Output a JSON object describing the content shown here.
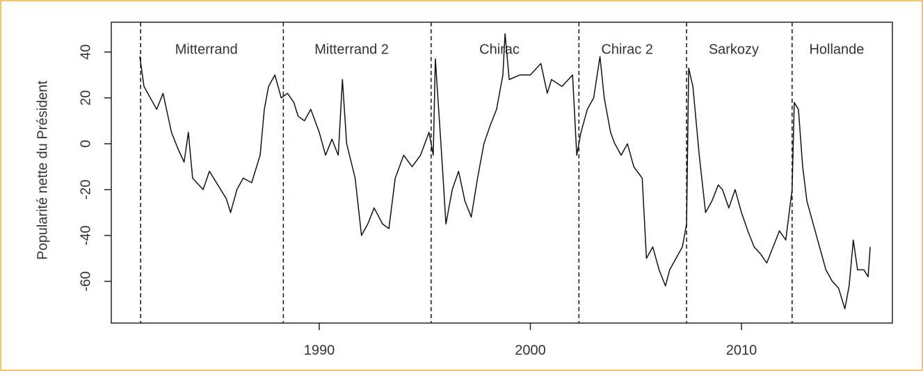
{
  "chart_data": {
    "type": "line",
    "y_label": "Popularité nette du Président",
    "xlim": [
      1980.15,
      2017.15
    ],
    "ylim": [
      -78.2,
      53
    ],
    "xticks": [
      1990,
      2000,
      2010
    ],
    "yticks": [
      -60,
      -40,
      -20,
      0,
      20,
      40
    ],
    "terms": [
      {
        "name": "Mitterrand",
        "start": 1981.54
      },
      {
        "name": "Mitterrand 2",
        "start": 1988.3
      },
      {
        "name": "Chirac",
        "start": 1995.3
      },
      {
        "name": "Chirac 2",
        "start": 2002.3
      },
      {
        "name": "Sarkozy",
        "start": 2007.4
      },
      {
        "name": "Hollande",
        "start": 2012.4
      }
    ],
    "series": [
      {
        "color": "#111111",
        "x": [
          1981.5,
          1981.7,
          1982,
          1982.3,
          1982.6,
          1983,
          1983.3,
          1983.6,
          1983.8,
          1984,
          1984.5,
          1984.8,
          1985.2,
          1985.6,
          1985.8,
          1986.1,
          1986.4,
          1986.8,
          1987.2,
          1987.4,
          1987.6,
          1987.9,
          1988.2,
          1988.5,
          1988.8,
          1989,
          1989.3,
          1989.6,
          1990,
          1990.3,
          1990.6,
          1990.9,
          1991.1,
          1991.3,
          1991.7,
          1992,
          1992.3,
          1992.6,
          1993,
          1993.3,
          1993.6,
          1994,
          1994.4,
          1994.8,
          1995.2,
          1995.4,
          1995.5,
          1995.8,
          1996,
          1996.3,
          1996.6,
          1996.9,
          1997.2,
          1997.5,
          1997.8,
          1998.1,
          1998.4,
          1998.7,
          1998.8,
          1999,
          1999.5,
          2000,
          2000.5,
          2000.8,
          2001,
          2001.5,
          2002,
          2002.2,
          2002.4,
          2002.7,
          2003,
          2003.3,
          2003.5,
          2003.8,
          2004,
          2004.3,
          2004.6,
          2004.9,
          2005.3,
          2005.5,
          2005.8,
          2006.1,
          2006.4,
          2006.6,
          2006.9,
          2007.2,
          2007.4,
          2007.5,
          2007.7,
          2008,
          2008.3,
          2008.6,
          2008.9,
          2009.1,
          2009.4,
          2009.7,
          2010,
          2010.3,
          2010.6,
          2010.9,
          2011.2,
          2011.5,
          2011.8,
          2012.1,
          2012.4,
          2012.5,
          2012.7,
          2012.9,
          2013.1,
          2013.4,
          2013.7,
          2014,
          2014.3,
          2014.6,
          2014.9,
          2015.1,
          2015.3,
          2015.5,
          2015.8,
          2016,
          2016.1
        ],
        "values": [
          38,
          25,
          20,
          15,
          22,
          5,
          -2,
          -8,
          5,
          -15,
          -20,
          -12,
          -18,
          -24,
          -30,
          -20,
          -15,
          -17,
          -5,
          15,
          25,
          30,
          20,
          22,
          18,
          12,
          10,
          15,
          5,
          -5,
          2,
          -5,
          28,
          0,
          -15,
          -40,
          -35,
          -28,
          -35,
          -37,
          -15,
          -5,
          -10,
          -5,
          5,
          -5,
          37,
          -5,
          -35,
          -20,
          -12,
          -25,
          -32,
          -15,
          0,
          8,
          15,
          30,
          48,
          28,
          30,
          30,
          35,
          22,
          28,
          25,
          30,
          -5,
          5,
          15,
          20,
          38,
          20,
          5,
          0,
          -5,
          0,
          -10,
          -15,
          -50,
          -45,
          -55,
          -62,
          -55,
          -50,
          -45,
          -35,
          33,
          25,
          -5,
          -30,
          -25,
          -18,
          -20,
          -28,
          -20,
          -30,
          -38,
          -45,
          -48,
          -52,
          -45,
          -38,
          -42,
          -20,
          18,
          15,
          -10,
          -25,
          -35,
          -45,
          -55,
          -60,
          -63,
          -72,
          -62,
          -42,
          -55,
          -55,
          -58,
          -45
        ]
      }
    ]
  }
}
